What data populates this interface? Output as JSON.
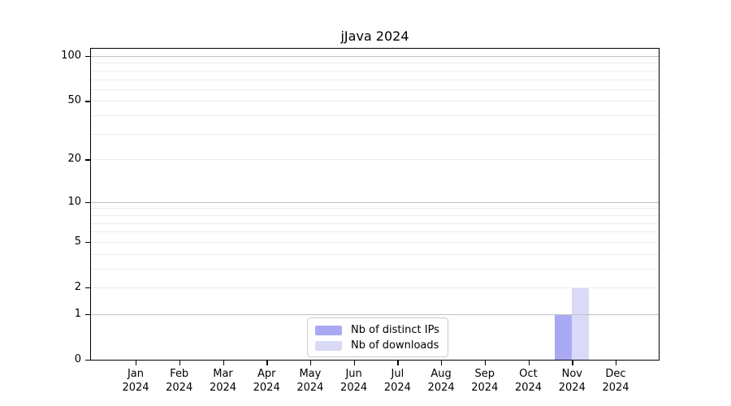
{
  "title": "jJava 2024",
  "legend": {
    "items": [
      {
        "label": "Nb of distinct IPs",
        "color": "#a9a9f3"
      },
      {
        "label": "Nb of downloads",
        "color": "#d9d9f8"
      }
    ]
  },
  "chart_data": {
    "type": "bar",
    "title": "jJava 2024",
    "categories": [
      "Jan 2024",
      "Feb 2024",
      "Mar 2024",
      "Apr 2024",
      "May 2024",
      "Jun 2024",
      "Jul 2024",
      "Aug 2024",
      "Sep 2024",
      "Oct 2024",
      "Nov 2024",
      "Dec 2024"
    ],
    "series": [
      {
        "name": "Nb of distinct IPs",
        "color": "#a9a9f3",
        "values": [
          0,
          0,
          0,
          0,
          0,
          0,
          0,
          0,
          0,
          0,
          1,
          0
        ]
      },
      {
        "name": "Nb of downloads",
        "color": "#d9d9f8",
        "values": [
          0,
          0,
          0,
          0,
          0,
          0,
          0,
          0,
          0,
          0,
          2,
          0
        ]
      }
    ],
    "xlabel": "",
    "ylabel": "",
    "y_scale": "log10(1+v)",
    "ylim": [
      0,
      112
    ],
    "y_ticks": [
      0,
      1,
      2,
      5,
      10,
      20,
      50,
      100
    ],
    "grid": {
      "major_values": [
        1,
        10,
        100
      ],
      "minor_values": [
        2,
        3,
        4,
        5,
        6,
        7,
        8,
        9,
        20,
        30,
        40,
        50,
        60,
        70,
        80,
        90
      ],
      "major_color": "#c2c2c2",
      "minor_color": "#ececec"
    },
    "legend_position": "lower center"
  }
}
